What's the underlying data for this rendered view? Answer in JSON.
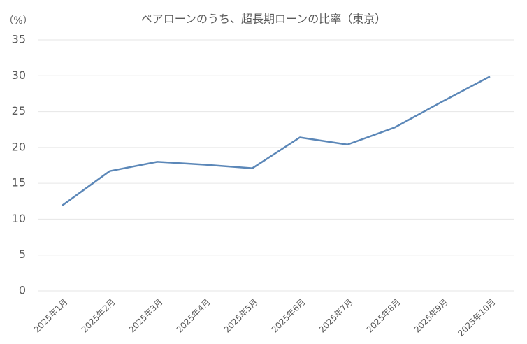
{
  "chart_data": {
    "type": "line",
    "title": "ペアローンのうち、超長期ローンの比率（東京）",
    "y_unit": "（%）",
    "categories": [
      "2025年1月",
      "2025年2月",
      "2025年3月",
      "2025年4月",
      "2025年5月",
      "2025年6月",
      "2025年7月",
      "2025年8月",
      "2025年9月",
      "2025年10月"
    ],
    "series": [
      {
        "color": "#5b87b8",
        "values": [
          11.9,
          16.7,
          18.0,
          17.6,
          17.1,
          21.4,
          20.4,
          22.8,
          26.4,
          29.9
        ]
      }
    ],
    "ylim": [
      0,
      35
    ],
    "yticks": [
      0,
      5,
      10,
      15,
      20,
      25,
      30,
      35
    ],
    "grid": true
  }
}
